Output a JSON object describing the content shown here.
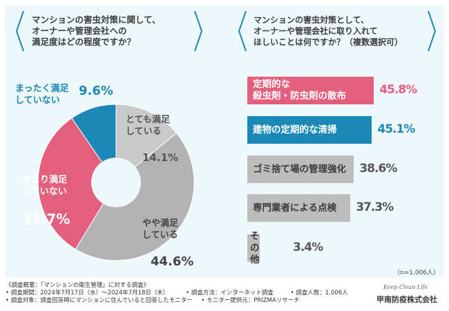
{
  "left_question": {
    "text": "マンションの害虫対策に関して、\nオーナーや管理会社への\n満足度はどの程度ですか？"
  },
  "right_question": {
    "text": "マンションの害虫対策として、\nオーナーや管理会社に取り入れて\nほしいことは何ですか？（複数選択可）"
  },
  "chart_data": [
    {
      "type": "pie",
      "title": "マンションの害虫対策に関して、オーナーや管理会社への満足度はどの程度ですか？",
      "slices": [
        {
          "label": "とても満足\nしている",
          "value": 14.1,
          "pct_text": "14.1%",
          "color": "#c9c9c9"
        },
        {
          "label": "やや満足\nしている",
          "value": 44.6,
          "pct_text": "44.6%",
          "color": "#b3b3b3"
        },
        {
          "label": "あまり満足\nしていない",
          "value": 31.7,
          "pct_text": "31.7%",
          "color": "#e35f7d"
        },
        {
          "label": "まったく満足\nしていない",
          "value": 9.6,
          "pct_text": "9.6%",
          "color": "#1b88b7"
        }
      ]
    },
    {
      "type": "bar",
      "orientation": "horizontal",
      "title": "マンションの害虫対策として、オーナーや管理会社に取り入れてほしいことは何ですか？（複数選択可）",
      "categories": [
        "定期的な\n殺虫剤・防虫剤の散布",
        "建物の定期的な清掃",
        "ゴミ捨て場の管理強化",
        "専門業者による点検",
        "その他"
      ],
      "values": [
        45.8,
        45.1,
        38.6,
        37.3,
        3.4
      ],
      "value_texts": [
        "45.8%",
        "45.1%",
        "38.6%",
        "37.3%",
        "3.4%"
      ],
      "colors": [
        "#e35f7d",
        "#1b88b7",
        "#bdbdbd",
        "#bdbdbd",
        "#bdbdbd"
      ],
      "value_colors": [
        "#e35f7d",
        "#1b88b7",
        "#555555",
        "#555555",
        "#555555"
      ],
      "label_colors": [
        "#ffffff",
        "#ffffff",
        "#3a3a3a",
        "#3a3a3a",
        "#3a3a3a"
      ],
      "xlim": [
        0,
        50
      ],
      "sample_note": "（n=1,006人）"
    }
  ],
  "footer": {
    "line1": "《調査概要：「マンションの衛生管理」に対する調査》",
    "line2a": "• 調査期間：2024年7月17日（水）〜2024年7月18日（木）",
    "line2b": "• 調査方法：インターネット調査",
    "line2c": "• 調査人数：1,006人",
    "line3a": "• 調査対象：調査回答時にマンションに住んでいると回答したモニター",
    "line3b": "• モニター提供元：PRIZMAリサーチ"
  },
  "logo": {
    "tagline": "Keep Clean Life",
    "name": "甲南防疫株式会社"
  }
}
